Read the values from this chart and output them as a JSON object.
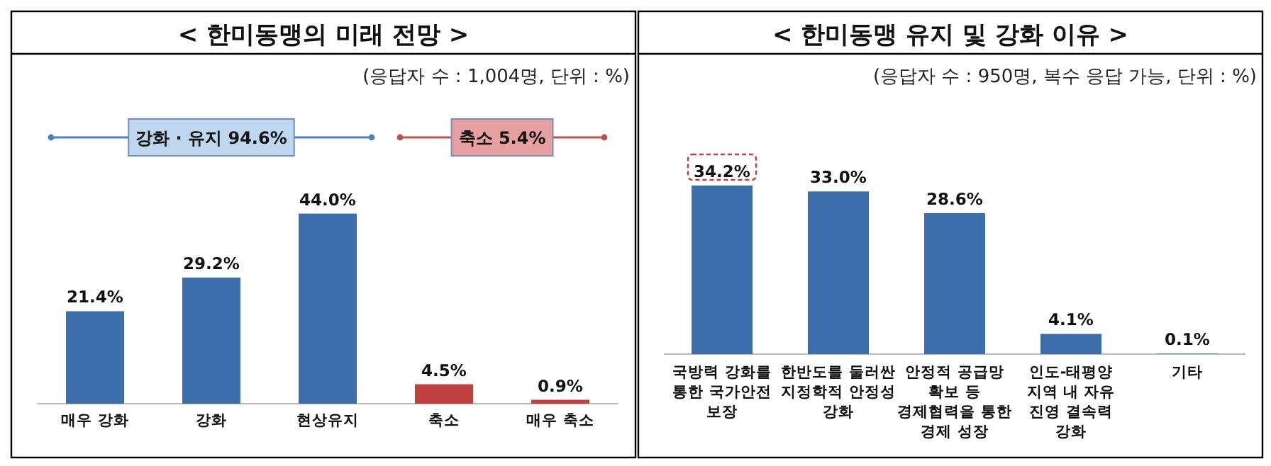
{
  "chart_data": [
    {
      "type": "bar",
      "title": "< 한미동맹의 미래 전망 >",
      "subtitle": "(응답자 수 : 1,004명, 단위 : %)",
      "categories": [
        "매우 강화",
        "강화",
        "현상유지",
        "축소",
        "매우 축소"
      ],
      "values": [
        21.4,
        29.2,
        44.0,
        4.5,
        0.9
      ],
      "colors": [
        "#3d6eac",
        "#3d6eac",
        "#3d6eac",
        "#c0403e",
        "#c0403e"
      ],
      "value_labels": [
        "21.4%",
        "29.2%",
        "44.0%",
        "4.5%",
        "0.9%"
      ],
      "annotations": [
        "강화 · 유지 94.6%",
        "축소 5.4%"
      ]
    },
    {
      "type": "bar",
      "title": "< 한미동맹 유지 및 강화 이유 >",
      "subtitle": "(응답자 수 : 950명, 복수 응답 가능, 단위 : %)",
      "categories": [
        "국방력 강화를 통한 국가안전 보장",
        "한반도를 둘러싼 지정학적 안정성 강화",
        "안정적 공급망 확보 등 경제협력을 통한 경제 성장",
        "인도-태평양 지역 내 자유 진영 결속력 강화",
        "기타"
      ],
      "values": [
        34.2,
        33.0,
        28.6,
        4.1,
        0.1
      ],
      "colors": [
        "#3d6eac",
        "#3d6eac",
        "#3d6eac",
        "#3d6eac",
        "#3d6eac"
      ],
      "value_labels": [
        "34.2%",
        "33.0%",
        "28.6%",
        "4.1%",
        "0.1%"
      ]
    }
  ]
}
